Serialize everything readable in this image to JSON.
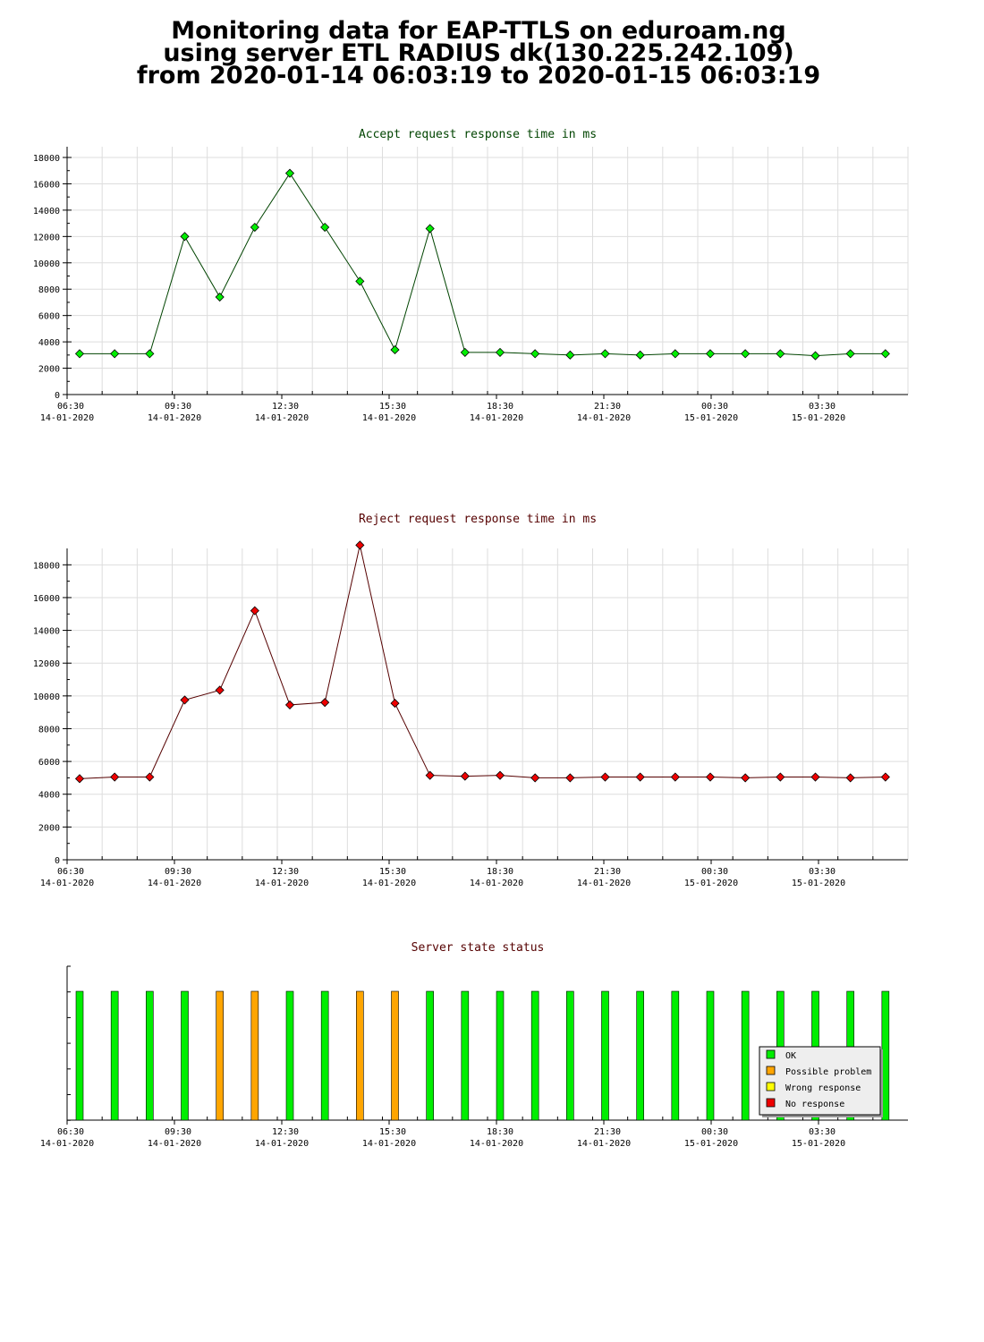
{
  "page_title": {
    "line1": "Monitoring data for EAP-TTLS on eduroam.ng",
    "line2": "using server ETL RADIUS dk(130.225.242.109)",
    "line3": "from 2020-01-14 06:03:19 to 2020-01-15 06:03:19"
  },
  "x_ticks": [
    {
      "time": "06:30",
      "date": "14-01-2020"
    },
    {
      "time": "09:30",
      "date": "14-01-2020"
    },
    {
      "time": "12:30",
      "date": "14-01-2020"
    },
    {
      "time": "15:30",
      "date": "14-01-2020"
    },
    {
      "time": "18:30",
      "date": "14-01-2020"
    },
    {
      "time": "21:30",
      "date": "14-01-2020"
    },
    {
      "time": "00:30",
      "date": "15-01-2020"
    },
    {
      "time": "03:30",
      "date": "15-01-2020"
    }
  ],
  "sample_times": [
    "06:33",
    "07:33",
    "08:33",
    "09:33",
    "10:33",
    "11:33",
    "12:33",
    "13:33",
    "14:33",
    "15:33",
    "16:33",
    "17:33",
    "18:33",
    "19:33",
    "20:33",
    "21:33",
    "22:33",
    "23:33",
    "00:33",
    "01:33",
    "02:33",
    "03:33",
    "04:33",
    "05:33"
  ],
  "chart_data": [
    {
      "type": "line",
      "title": "Accept request response time in ms",
      "title_color": "#004400",
      "line_color": "#004400",
      "marker_color": "#00ee00",
      "ylim": [
        0,
        18000
      ],
      "yticks": [
        0,
        2000,
        4000,
        6000,
        8000,
        10000,
        12000,
        14000,
        16000,
        18000
      ],
      "grid": true,
      "values": [
        3100,
        3100,
        3100,
        12000,
        7400,
        12700,
        16800,
        12700,
        8600,
        3400,
        12600,
        3200,
        3200,
        3100,
        3000,
        3100,
        3000,
        3100,
        3100,
        3100,
        3100,
        2950,
        3100,
        3100
      ]
    },
    {
      "type": "line",
      "title": "Reject request response time in ms",
      "title_color": "#550000",
      "line_color": "#550000",
      "marker_color": "#ee0000",
      "ylim": [
        0,
        19000
      ],
      "yticks": [
        0,
        2000,
        4000,
        6000,
        8000,
        10000,
        12000,
        14000,
        16000,
        18000
      ],
      "grid": true,
      "values": [
        4950,
        5050,
        5050,
        9750,
        10350,
        15200,
        9450,
        9600,
        19200,
        9550,
        5150,
        5100,
        5150,
        5000,
        5000,
        5050,
        5050,
        5050,
        5050,
        5000,
        5050,
        5050,
        5000,
        5050
      ]
    },
    {
      "type": "bar",
      "title": "Server state status",
      "title_color": "#550000",
      "statuses": [
        "OK",
        "OK",
        "OK",
        "OK",
        "Possible problem",
        "Possible problem",
        "OK",
        "OK",
        "Possible problem",
        "Possible problem",
        "OK",
        "OK",
        "OK",
        "OK",
        "OK",
        "OK",
        "OK",
        "OK",
        "OK",
        "OK",
        "OK",
        "OK",
        "OK",
        "OK"
      ],
      "legend": [
        {
          "label": "OK",
          "color": "#00ee00"
        },
        {
          "label": "Possible problem",
          "color": "#ffa500"
        },
        {
          "label": "Wrong response",
          "color": "#ffff00"
        },
        {
          "label": "No response",
          "color": "#ee0000"
        }
      ],
      "legend_position": "bottom-right"
    }
  ]
}
